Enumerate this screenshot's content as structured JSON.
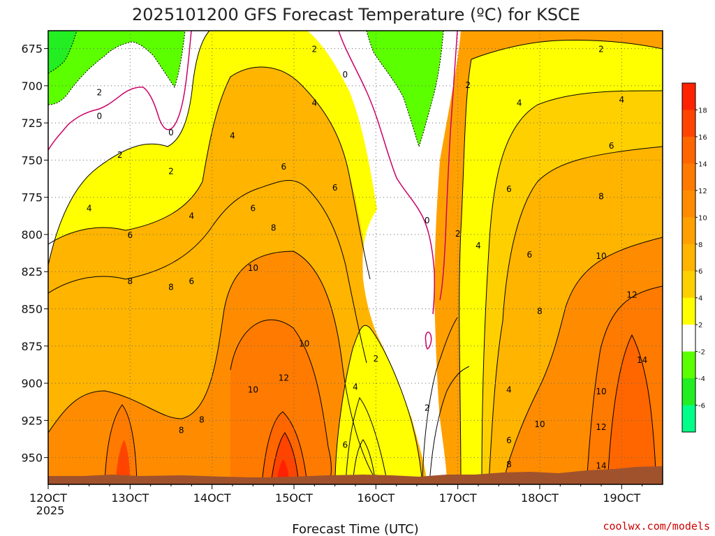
{
  "chart_data": {
    "type": "heatmap",
    "title": "2025101200 GFS Forecast Temperature (ºC) for KSCE",
    "xlabel": "Forecast Time (UTC)",
    "ylabel": "",
    "x_year_label": "2025",
    "x_ticks": [
      "12OCT",
      "13OCT",
      "14OCT",
      "15OCT",
      "16OCT",
      "17OCT",
      "18OCT",
      "19OCT"
    ],
    "xlim": [
      "12OCT 00Z",
      "19OCT 12Z"
    ],
    "y_ticks": [
      675,
      700,
      725,
      750,
      775,
      800,
      825,
      850,
      875,
      900,
      925,
      950
    ],
    "ylim": [
      663,
      968
    ],
    "y_reversed": true,
    "grid": true,
    "colorbar": {
      "position": "right",
      "tick_labels": [
        "18",
        "16",
        "14",
        "12",
        "10",
        "8",
        "6",
        "4",
        "2",
        "-2",
        "-4",
        "-6"
      ],
      "bins": [
        {
          "range": "18+",
          "color": "#ff2200"
        },
        {
          "range": "16-18",
          "color": "#ff4400"
        },
        {
          "range": "14-16",
          "color": "#ff6600"
        },
        {
          "range": "12-14",
          "color": "#ff7a00"
        },
        {
          "range": "10-12",
          "color": "#ff8c00"
        },
        {
          "range": "8-10",
          "color": "#ffa000"
        },
        {
          "range": "6-8",
          "color": "#ffb400"
        },
        {
          "range": "4-6",
          "color": "#ffd000"
        },
        {
          "range": "2-4",
          "color": "#ffff00"
        },
        {
          "range": "-2-2",
          "color": "#ffffff"
        },
        {
          "range": "-4--2",
          "color": "#5cff00"
        },
        {
          "range": "-6--4",
          "color": "#22ee22"
        },
        {
          "range": "<-6",
          "color": "#00ff88"
        }
      ]
    },
    "contour_labels": [
      {
        "text": "2",
        "time": "12OCT 15Z",
        "level": 705
      },
      {
        "text": "0",
        "time": "12OCT 15Z",
        "level": 721
      },
      {
        "text": "2",
        "time": "12OCT 21Z",
        "level": 747
      },
      {
        "text": "4",
        "time": "12OCT 12Z",
        "level": 783
      },
      {
        "text": "6",
        "time": "13OCT 00Z",
        "level": 801
      },
      {
        "text": "8",
        "time": "13OCT 00Z",
        "level": 832
      },
      {
        "text": "2",
        "time": "13OCT 12Z",
        "level": 758
      },
      {
        "text": "0",
        "time": "13OCT 12Z",
        "level": 732
      },
      {
        "text": "4",
        "time": "13OCT 18Z",
        "level": 788
      },
      {
        "text": "8",
        "time": "13OCT 12Z",
        "level": 836
      },
      {
        "text": "6",
        "time": "13OCT 18Z",
        "level": 832
      },
      {
        "text": "8",
        "time": "13OCT 15Z",
        "level": 932
      },
      {
        "text": "8",
        "time": "13OCT 21Z",
        "level": 925
      },
      {
        "text": "4",
        "time": "14OCT 06Z",
        "level": 734
      },
      {
        "text": "6",
        "time": "14OCT 12Z",
        "level": 783
      },
      {
        "text": "8",
        "time": "14OCT 18Z",
        "level": 796
      },
      {
        "text": "10",
        "time": "14OCT 12Z",
        "level": 823
      },
      {
        "text": "10",
        "time": "14OCT 12Z",
        "level": 905
      },
      {
        "text": "6",
        "time": "14OCT 21Z",
        "level": 755
      },
      {
        "text": "2",
        "time": "15OCT 06Z",
        "level": 676
      },
      {
        "text": "4",
        "time": "15OCT 06Z",
        "level": 712
      },
      {
        "text": "6",
        "time": "15OCT 12Z",
        "level": 769
      },
      {
        "text": "10",
        "time": "15OCT 03Z",
        "level": 874
      },
      {
        "text": "12",
        "time": "14OCT 21Z",
        "level": 897
      },
      {
        "text": "0",
        "time": "15OCT 15Z",
        "level": 693
      },
      {
        "text": "4",
        "time": "15OCT 18Z",
        "level": 903
      },
      {
        "text": "6",
        "time": "15OCT 15Z",
        "level": 942
      },
      {
        "text": "2",
        "time": "16OCT 00Z",
        "level": 884
      },
      {
        "text": "0",
        "time": "16OCT 15Z",
        "level": 791
      },
      {
        "text": "2",
        "time": "16OCT 15Z",
        "level": 917
      },
      {
        "text": "2",
        "time": "17OCT 03Z",
        "level": 700
      },
      {
        "text": "2",
        "time": "17OCT 00Z",
        "level": 800
      },
      {
        "text": "4",
        "time": "17OCT 06Z",
        "level": 808
      },
      {
        "text": "4",
        "time": "17OCT 18Z",
        "level": 712
      },
      {
        "text": "6",
        "time": "17OCT 15Z",
        "level": 770
      },
      {
        "text": "6",
        "time": "17OCT 21Z",
        "level": 814
      },
      {
        "text": "8",
        "time": "18OCT 00Z",
        "level": 852
      },
      {
        "text": "4",
        "time": "17OCT 15Z",
        "level": 905
      },
      {
        "text": "6",
        "time": "17OCT 15Z",
        "level": 939
      },
      {
        "text": "8",
        "time": "17OCT 15Z",
        "level": 955
      },
      {
        "text": "10",
        "time": "18OCT 00Z",
        "level": 928
      },
      {
        "text": "2",
        "time": "18OCT 18Z",
        "level": 676
      },
      {
        "text": "4",
        "time": "19OCT 00Z",
        "level": 710
      },
      {
        "text": "6",
        "time": "18OCT 21Z",
        "level": 741
      },
      {
        "text": "8",
        "time": "18OCT 18Z",
        "level": 775
      },
      {
        "text": "10",
        "time": "18OCT 18Z",
        "level": 815
      },
      {
        "text": "12",
        "time": "19OCT 03Z",
        "level": 841
      },
      {
        "text": "14",
        "time": "19OCT 06Z",
        "level": 885
      },
      {
        "text": "10",
        "time": "18OCT 18Z",
        "level": 906
      },
      {
        "text": "12",
        "time": "18OCT 18Z",
        "level": 930
      },
      {
        "text": "14",
        "time": "18OCT 18Z",
        "level": 956
      }
    ]
  },
  "credit": "coolwx.com/models"
}
